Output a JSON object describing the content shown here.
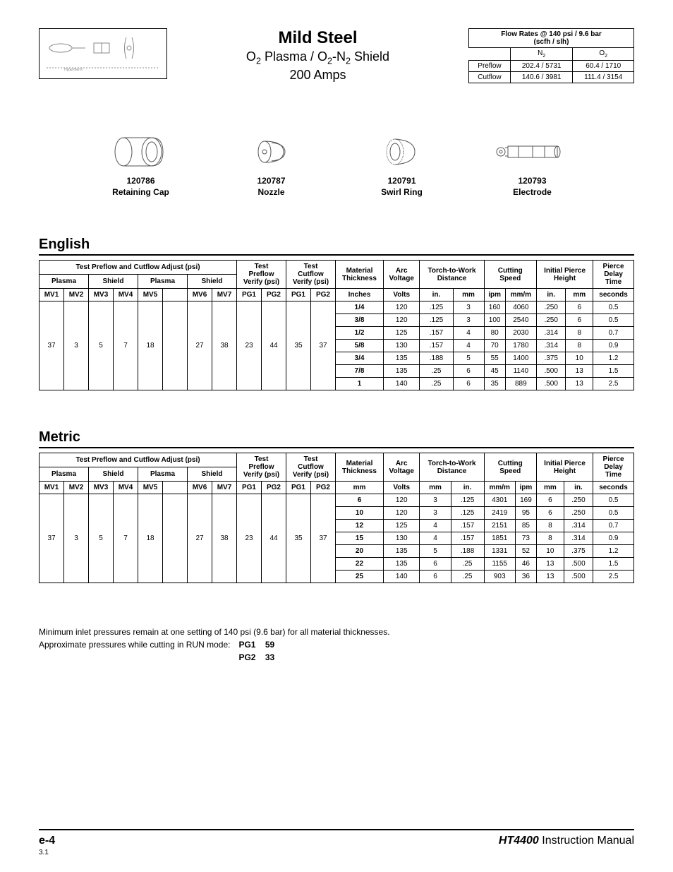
{
  "title": {
    "material": "Mild Steel",
    "process_html": "O<sub class=\"chem\">2</sub> Plasma / O<sub class=\"chem\">2</sub>-N<sub class=\"chem\">2</sub> Shield",
    "amperage": "200 Amps"
  },
  "flow_rates": {
    "title": "Flow Rates @ 140 psi / 9.6 bar\n(scfh / slh)",
    "gas1_html": "N<sub class=\"chem\">2</sub>",
    "gas2_html": "O<sub class=\"chem\">2</sub>",
    "rows": [
      {
        "label": "Preflow",
        "g1": "202.4 / 5731",
        "g2": "60.4 / 1710"
      },
      {
        "label": "Cutflow",
        "g1": "140.6 / 3981",
        "g2": "111.4 / 3154"
      }
    ]
  },
  "parts": [
    {
      "num": "120786",
      "name": "Retaining Cap"
    },
    {
      "num": "120787",
      "name": "Nozzle"
    },
    {
      "num": "120791",
      "name": "Swirl Ring"
    },
    {
      "num": "120793",
      "name": "Electrode"
    }
  ],
  "sections": {
    "english": "English",
    "metric": "Metric"
  },
  "cut_headers": {
    "adjust": "Test Preflow and Cutflow Adjust (psi)",
    "plasma": "Plasma",
    "shield": "Shield",
    "test_preflow": "Test Preflow Verify (psi)",
    "test_cutflow": "Test Cutflow Verify (psi)",
    "mat_thick": "Material Thickness",
    "arc": "Arc Voltage",
    "ttw": "Torch-to-Work Distance",
    "speed": "Cutting Speed",
    "iph": "Initial Pierce Height",
    "pdt": "Pierce Delay Time",
    "mv": [
      "MV1",
      "MV2",
      "MV3",
      "MV4",
      "MV5",
      "",
      "MV6",
      "MV7"
    ],
    "pg": [
      "PG1",
      "PG2",
      "PG1",
      "PG2"
    ],
    "english_units": {
      "thick": "Inches",
      "volt": "Volts",
      "d1": "in.",
      "d2": "mm",
      "s1": "ipm",
      "s2": "mm/m",
      "p1": "in.",
      "p2": "mm",
      "t": "seconds"
    },
    "metric_units": {
      "thick": "mm",
      "volt": "Volts",
      "d1": "mm",
      "d2": "in.",
      "s1": "mm/m",
      "s2": "ipm",
      "p1": "mm",
      "p2": "in.",
      "t": "seconds"
    }
  },
  "mv_vals": [
    "37",
    "3",
    "5",
    "7",
    "18",
    "",
    "27",
    "38",
    "23",
    "44",
    "35",
    "37"
  ],
  "english_rows": [
    [
      "1/4",
      "120",
      ".125",
      "3",
      "160",
      "4060",
      ".250",
      "6",
      "0.5"
    ],
    [
      "3/8",
      "120",
      ".125",
      "3",
      "100",
      "2540",
      ".250",
      "6",
      "0.5"
    ],
    [
      "1/2",
      "125",
      ".157",
      "4",
      "80",
      "2030",
      ".314",
      "8",
      "0.7"
    ],
    [
      "5/8",
      "130",
      ".157",
      "4",
      "70",
      "1780",
      ".314",
      "8",
      "0.9"
    ],
    [
      "3/4",
      "135",
      ".188",
      "5",
      "55",
      "1400",
      ".375",
      "10",
      "1.2"
    ],
    [
      "7/8",
      "135",
      ".25",
      "6",
      "45",
      "1140",
      ".500",
      "13",
      "1.5"
    ],
    [
      "1",
      "140",
      ".25",
      "6",
      "35",
      "889",
      ".500",
      "13",
      "2.5"
    ]
  ],
  "metric_rows": [
    [
      "6",
      "120",
      "3",
      ".125",
      "4301",
      "169",
      "6",
      ".250",
      "0.5"
    ],
    [
      "10",
      "120",
      "3",
      ".125",
      "2419",
      "95",
      "6",
      ".250",
      "0.5"
    ],
    [
      "12",
      "125",
      "4",
      ".157",
      "2151",
      "85",
      "8",
      ".314",
      "0.7"
    ],
    [
      "15",
      "130",
      "4",
      ".157",
      "1851",
      "73",
      "8",
      ".314",
      "0.9"
    ],
    [
      "20",
      "135",
      "5",
      ".188",
      "1331",
      "52",
      "10",
      ".375",
      "1.2"
    ],
    [
      "22",
      "135",
      "6",
      ".25",
      "1155",
      "46",
      "13",
      ".500",
      "1.5"
    ],
    [
      "25",
      "140",
      "6",
      ".25",
      "903",
      "36",
      "13",
      ".500",
      "2.5"
    ]
  ],
  "notes": {
    "n1": "Minimum inlet pressures remain at one setting of 140 psi (9.6 bar) for all material thicknesses.",
    "n2": "Approximate pressures while cutting in RUN mode:",
    "pg": [
      [
        "PG1",
        "59"
      ],
      [
        "PG2",
        "33"
      ]
    ]
  },
  "footer": {
    "left": "e-4",
    "right_bold": "HT4400",
    "right_rest": " Instruction Manual",
    "rev": "3.1"
  }
}
